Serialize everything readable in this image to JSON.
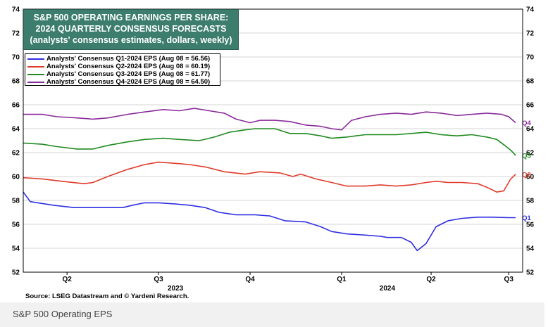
{
  "title": {
    "line1": "S&P 500 OPERATING EARNINGS PER SHARE:",
    "line2": "2024 QUARTERLY CONSENSUS FORECASTS",
    "line3": "(analysts' consensus estimates, dollars, weekly)"
  },
  "source": "Source: LSEG Datastream and © Yardeni Research.",
  "caption": "S&P 500 Operating EPS",
  "chart_data": {
    "type": "line",
    "title": "S&P 500 OPERATING EARNINGS PER SHARE: 2024 QUARTERLY CONSENSUS FORECASTS",
    "subtitle": "(analysts' consensus estimates, dollars, weekly)",
    "ylim": [
      52,
      74
    ],
    "y_ticks": [
      52,
      54,
      56,
      58,
      60,
      62,
      64,
      66,
      68,
      70,
      72,
      74
    ],
    "xlim": [
      "2023-04-01",
      "2024-08-15"
    ],
    "x_ticks": [
      {
        "label": "Q2",
        "date": "2023-05-15"
      },
      {
        "label": "Q3",
        "date": "2023-08-15"
      },
      {
        "label": "Q4",
        "date": "2023-11-15"
      },
      {
        "label": "Q1",
        "date": "2024-02-15"
      },
      {
        "label": "Q2",
        "date": "2024-05-15"
      },
      {
        "label": "Q3",
        "date": "2024-08-01"
      }
    ],
    "year_labels": [
      {
        "label": "2023",
        "date": "2023-09-01"
      },
      {
        "label": "2024",
        "date": "2024-04-01"
      }
    ],
    "grid": true,
    "legend_position": "top-left",
    "series": [
      {
        "name": "Analysts' Consensus Q1-2024 EPS (Aug 08 = 56.56)",
        "end_label": "Q1",
        "color": "#2f2fe0",
        "points": [
          [
            "2023-04-01",
            58.7
          ],
          [
            "2023-04-08",
            57.9
          ],
          [
            "2023-05-01",
            57.6
          ],
          [
            "2023-05-22",
            57.4
          ],
          [
            "2023-06-15",
            57.4
          ],
          [
            "2023-07-10",
            57.4
          ],
          [
            "2023-07-20",
            57.6
          ],
          [
            "2023-08-01",
            57.8
          ],
          [
            "2023-08-15",
            57.8
          ],
          [
            "2023-09-01",
            57.7
          ],
          [
            "2023-09-15",
            57.6
          ],
          [
            "2023-10-01",
            57.4
          ],
          [
            "2023-10-15",
            57.0
          ],
          [
            "2023-11-01",
            56.8
          ],
          [
            "2023-11-20",
            56.8
          ],
          [
            "2023-12-05",
            56.7
          ],
          [
            "2023-12-20",
            56.3
          ],
          [
            "2024-01-10",
            56.2
          ],
          [
            "2024-01-25",
            55.8
          ],
          [
            "2024-02-05",
            55.4
          ],
          [
            "2024-02-20",
            55.2
          ],
          [
            "2024-03-10",
            55.1
          ],
          [
            "2024-03-25",
            55.0
          ],
          [
            "2024-04-01",
            54.9
          ],
          [
            "2024-04-15",
            54.9
          ],
          [
            "2024-04-25",
            54.5
          ],
          [
            "2024-05-01",
            53.8
          ],
          [
            "2024-05-10",
            54.4
          ],
          [
            "2024-05-20",
            55.8
          ],
          [
            "2024-06-01",
            56.3
          ],
          [
            "2024-06-15",
            56.5
          ],
          [
            "2024-07-01",
            56.6
          ],
          [
            "2024-07-15",
            56.6
          ],
          [
            "2024-08-01",
            56.56
          ],
          [
            "2024-08-08",
            56.56
          ]
        ]
      },
      {
        "name": "Analysts' Consensus Q2-2024 EPS (Aug 08 = 60.19)",
        "end_label": "Q2",
        "color": "#e03a2a",
        "points": [
          [
            "2023-04-01",
            59.9
          ],
          [
            "2023-04-20",
            59.8
          ],
          [
            "2023-05-10",
            59.6
          ],
          [
            "2023-06-01",
            59.4
          ],
          [
            "2023-06-10",
            59.5
          ],
          [
            "2023-06-25",
            60.0
          ],
          [
            "2023-07-15",
            60.6
          ],
          [
            "2023-08-01",
            61.0
          ],
          [
            "2023-08-15",
            61.2
          ],
          [
            "2023-09-01",
            61.1
          ],
          [
            "2023-09-15",
            61.0
          ],
          [
            "2023-10-01",
            60.8
          ],
          [
            "2023-10-20",
            60.4
          ],
          [
            "2023-11-10",
            60.2
          ],
          [
            "2023-11-25",
            60.4
          ],
          [
            "2023-12-15",
            60.3
          ],
          [
            "2023-12-28",
            60.0
          ],
          [
            "2024-01-05",
            60.2
          ],
          [
            "2024-01-20",
            59.8
          ],
          [
            "2024-02-05",
            59.5
          ],
          [
            "2024-02-20",
            59.2
          ],
          [
            "2024-03-10",
            59.2
          ],
          [
            "2024-03-25",
            59.3
          ],
          [
            "2024-04-10",
            59.2
          ],
          [
            "2024-04-25",
            59.3
          ],
          [
            "2024-05-10",
            59.5
          ],
          [
            "2024-05-20",
            59.6
          ],
          [
            "2024-06-01",
            59.5
          ],
          [
            "2024-06-15",
            59.5
          ],
          [
            "2024-07-01",
            59.4
          ],
          [
            "2024-07-10",
            59.1
          ],
          [
            "2024-07-20",
            58.7
          ],
          [
            "2024-07-27",
            58.8
          ],
          [
            "2024-08-03",
            59.8
          ],
          [
            "2024-08-08",
            60.19
          ]
        ]
      },
      {
        "name": "Analysts' Consensus Q3-2024 EPS (Aug 08 = 61.77)",
        "end_label": "Q3",
        "color": "#1f8a1f",
        "points": [
          [
            "2023-04-01",
            62.8
          ],
          [
            "2023-04-20",
            62.7
          ],
          [
            "2023-05-05",
            62.5
          ],
          [
            "2023-05-25",
            62.3
          ],
          [
            "2023-06-10",
            62.3
          ],
          [
            "2023-06-25",
            62.6
          ],
          [
            "2023-07-15",
            62.9
          ],
          [
            "2023-08-01",
            63.1
          ],
          [
            "2023-08-20",
            63.2
          ],
          [
            "2023-09-05",
            63.1
          ],
          [
            "2023-09-25",
            63.0
          ],
          [
            "2023-10-10",
            63.3
          ],
          [
            "2023-10-25",
            63.7
          ],
          [
            "2023-11-10",
            63.9
          ],
          [
            "2023-11-20",
            64.0
          ],
          [
            "2023-12-10",
            64.0
          ],
          [
            "2023-12-25",
            63.6
          ],
          [
            "2024-01-10",
            63.6
          ],
          [
            "2024-01-25",
            63.4
          ],
          [
            "2024-02-05",
            63.2
          ],
          [
            "2024-02-20",
            63.3
          ],
          [
            "2024-03-10",
            63.5
          ],
          [
            "2024-03-25",
            63.5
          ],
          [
            "2024-04-10",
            63.5
          ],
          [
            "2024-04-25",
            63.6
          ],
          [
            "2024-05-10",
            63.7
          ],
          [
            "2024-05-25",
            63.5
          ],
          [
            "2024-06-10",
            63.4
          ],
          [
            "2024-06-25",
            63.5
          ],
          [
            "2024-07-10",
            63.3
          ],
          [
            "2024-07-20",
            63.1
          ],
          [
            "2024-07-28",
            62.6
          ],
          [
            "2024-08-03",
            62.2
          ],
          [
            "2024-08-08",
            61.77
          ]
        ]
      },
      {
        "name": "Analysts' Consensus Q4-2024 EPS (Aug 08 = 64.50)",
        "end_label": "Q4",
        "color": "#8a2a9a",
        "points": [
          [
            "2023-04-01",
            65.2
          ],
          [
            "2023-04-20",
            65.2
          ],
          [
            "2023-05-05",
            65.0
          ],
          [
            "2023-05-25",
            64.9
          ],
          [
            "2023-06-10",
            64.8
          ],
          [
            "2023-06-25",
            64.9
          ],
          [
            "2023-07-15",
            65.2
          ],
          [
            "2023-08-01",
            65.4
          ],
          [
            "2023-08-20",
            65.6
          ],
          [
            "2023-09-05",
            65.5
          ],
          [
            "2023-09-20",
            65.7
          ],
          [
            "2023-10-05",
            65.5
          ],
          [
            "2023-10-20",
            65.3
          ],
          [
            "2023-11-01",
            64.8
          ],
          [
            "2023-11-15",
            64.5
          ],
          [
            "2023-11-25",
            64.7
          ],
          [
            "2023-12-10",
            64.7
          ],
          [
            "2023-12-25",
            64.6
          ],
          [
            "2024-01-10",
            64.3
          ],
          [
            "2024-01-25",
            64.2
          ],
          [
            "2024-02-05",
            64.0
          ],
          [
            "2024-02-15",
            63.9
          ],
          [
            "2024-02-25",
            64.7
          ],
          [
            "2024-03-10",
            65.0
          ],
          [
            "2024-03-25",
            65.2
          ],
          [
            "2024-04-10",
            65.3
          ],
          [
            "2024-04-25",
            65.2
          ],
          [
            "2024-05-10",
            65.4
          ],
          [
            "2024-05-25",
            65.3
          ],
          [
            "2024-06-10",
            65.1
          ],
          [
            "2024-06-25",
            65.2
          ],
          [
            "2024-07-10",
            65.3
          ],
          [
            "2024-07-25",
            65.2
          ],
          [
            "2024-08-01",
            65.0
          ],
          [
            "2024-08-08",
            64.5
          ]
        ]
      }
    ]
  }
}
